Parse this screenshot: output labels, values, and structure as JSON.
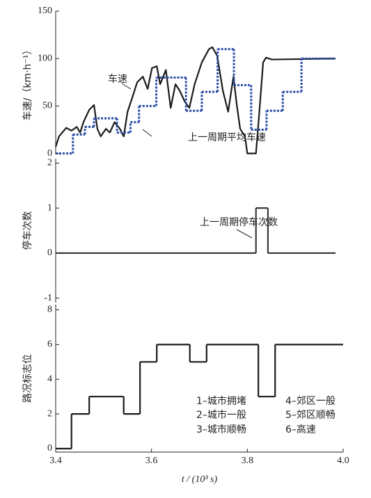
{
  "chart_data": [
    {
      "type": "line",
      "ylabel": "车速/（km·h⁻¹）",
      "xlim": [
        3.4,
        4.0
      ],
      "ylim": [
        -1,
        150
      ],
      "yticks": [
        0,
        50,
        100,
        150
      ],
      "annotations": [
        "车速",
        "上一周期平均车速"
      ],
      "series": [
        {
          "color": "#1a1a1a",
          "style": "solid",
          "x": [
            3.4,
            3.407,
            3.422,
            3.433,
            3.444,
            3.451,
            3.458,
            3.47,
            3.48,
            3.487,
            3.494,
            3.505,
            3.513,
            3.523,
            3.534,
            3.542,
            3.55,
            3.56,
            3.57,
            3.582,
            3.592,
            3.601,
            3.611,
            3.618,
            3.63,
            3.64,
            3.65,
            3.659,
            3.669,
            3.679,
            3.69,
            3.705,
            3.72,
            3.727,
            3.737,
            3.749,
            3.76,
            3.771,
            3.778,
            3.785,
            3.795,
            3.8,
            3.818,
            3.824,
            3.833,
            3.839,
            3.851,
            3.984
          ],
          "values": [
            7,
            18,
            27,
            24,
            28,
            22,
            33,
            46,
            51,
            26,
            18,
            26,
            22,
            33,
            26,
            18,
            44,
            59,
            75,
            81,
            68,
            90,
            92,
            73,
            88,
            48,
            73,
            66,
            55,
            48,
            73,
            96,
            110,
            112,
            103,
            66,
            44,
            81,
            51,
            26,
            18,
            0,
            0,
            37,
            96,
            101,
            99,
            100
          ]
        },
        {
          "color": "#2a4aa8",
          "style": "dotted",
          "step": "post",
          "x": [
            3.4,
            3.436,
            3.461,
            3.48,
            3.528,
            3.556,
            3.574,
            3.61,
            3.672,
            3.705,
            3.738,
            3.772,
            3.808,
            3.84,
            3.874,
            3.913,
            3.984
          ],
          "values": [
            0,
            20,
            28,
            37,
            22,
            33,
            50,
            80,
            45,
            65,
            110,
            72,
            25,
            45,
            65,
            100,
            100
          ]
        }
      ]
    },
    {
      "type": "line",
      "ylabel": "停车次数",
      "xlim": [
        3.4,
        4.0
      ],
      "ylim": [
        -1.1,
        2.1
      ],
      "yticks": [
        -1,
        0,
        1,
        2
      ],
      "annotations": [
        "上一周期停车次数"
      ],
      "series": [
        {
          "color": "#3a3a3a",
          "style": "solid",
          "step": "post",
          "x": [
            3.4,
            3.818,
            3.843,
            3.984
          ],
          "values": [
            0,
            1,
            0,
            0
          ]
        }
      ]
    },
    {
      "type": "line",
      "ylabel": "路况标志位",
      "xlabel": "t / (10³ s)",
      "xlim": [
        3.4,
        4.0
      ],
      "ylim": [
        -0.2,
        8.3
      ],
      "yticks": [
        0,
        2,
        4,
        6,
        8
      ],
      "xticks": [
        3.4,
        3.6,
        3.8,
        {
          "value": 4.0,
          "label": "4.0"
        }
      ],
      "annotations": [
        "1–城市拥堵",
        "2–城市一般",
        "3–城市顺畅",
        "4–郊区一般",
        "5–郊区顺畅",
        "6–高速"
      ],
      "series": [
        {
          "color": "#1a1a1a",
          "style": "solid",
          "step": "post",
          "x": [
            3.4,
            3.433,
            3.47,
            3.542,
            3.576,
            3.611,
            3.68,
            3.715,
            3.823,
            3.858,
            4.0
          ],
          "values": [
            0,
            2,
            3,
            2,
            5,
            6,
            5,
            6,
            3,
            6,
            6
          ]
        }
      ]
    }
  ]
}
